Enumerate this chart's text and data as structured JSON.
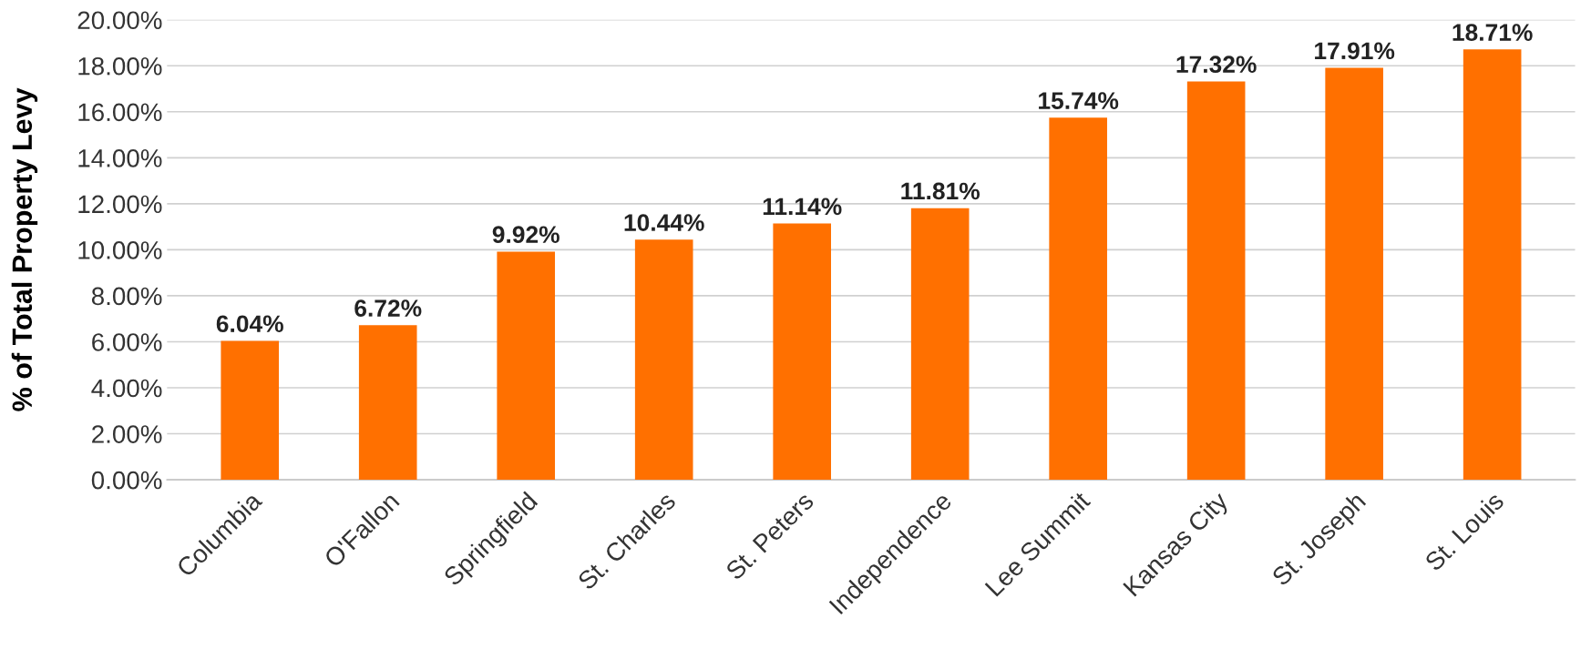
{
  "chart_data": {
    "type": "bar",
    "ylabel": "% of Total Property Levy",
    "categories": [
      "Columbia",
      "O'Fallon",
      "Springfield",
      "St. Charles",
      "St. Peters",
      "Independence",
      "Lee Summit",
      "Kansas City",
      "St. Joseph",
      "St. Louis"
    ],
    "values": [
      6.04,
      6.72,
      9.92,
      10.44,
      11.14,
      11.81,
      15.74,
      17.32,
      17.91,
      18.71
    ],
    "value_labels": [
      "6.04%",
      "6.72%",
      "9.92%",
      "10.44%",
      "11.14%",
      "11.81%",
      "15.74%",
      "17.32%",
      "17.91%",
      "18.71%"
    ],
    "color": "#ff7000",
    "ylim": [
      0,
      20
    ],
    "yticks": [
      {
        "value": 0,
        "label": "0.00%"
      },
      {
        "value": 2,
        "label": "2.00%"
      },
      {
        "value": 4,
        "label": "4.00%"
      },
      {
        "value": 6,
        "label": "6.00%"
      },
      {
        "value": 8,
        "label": "8.00%"
      },
      {
        "value": 10,
        "label": "10.00%"
      },
      {
        "value": 12,
        "label": "12.00%"
      },
      {
        "value": 14,
        "label": "14.00%"
      },
      {
        "value": 16,
        "label": "16.00%"
      },
      {
        "value": 18,
        "label": "18.00%"
      },
      {
        "value": 20,
        "label": "20.00%"
      }
    ],
    "grid": "y"
  }
}
